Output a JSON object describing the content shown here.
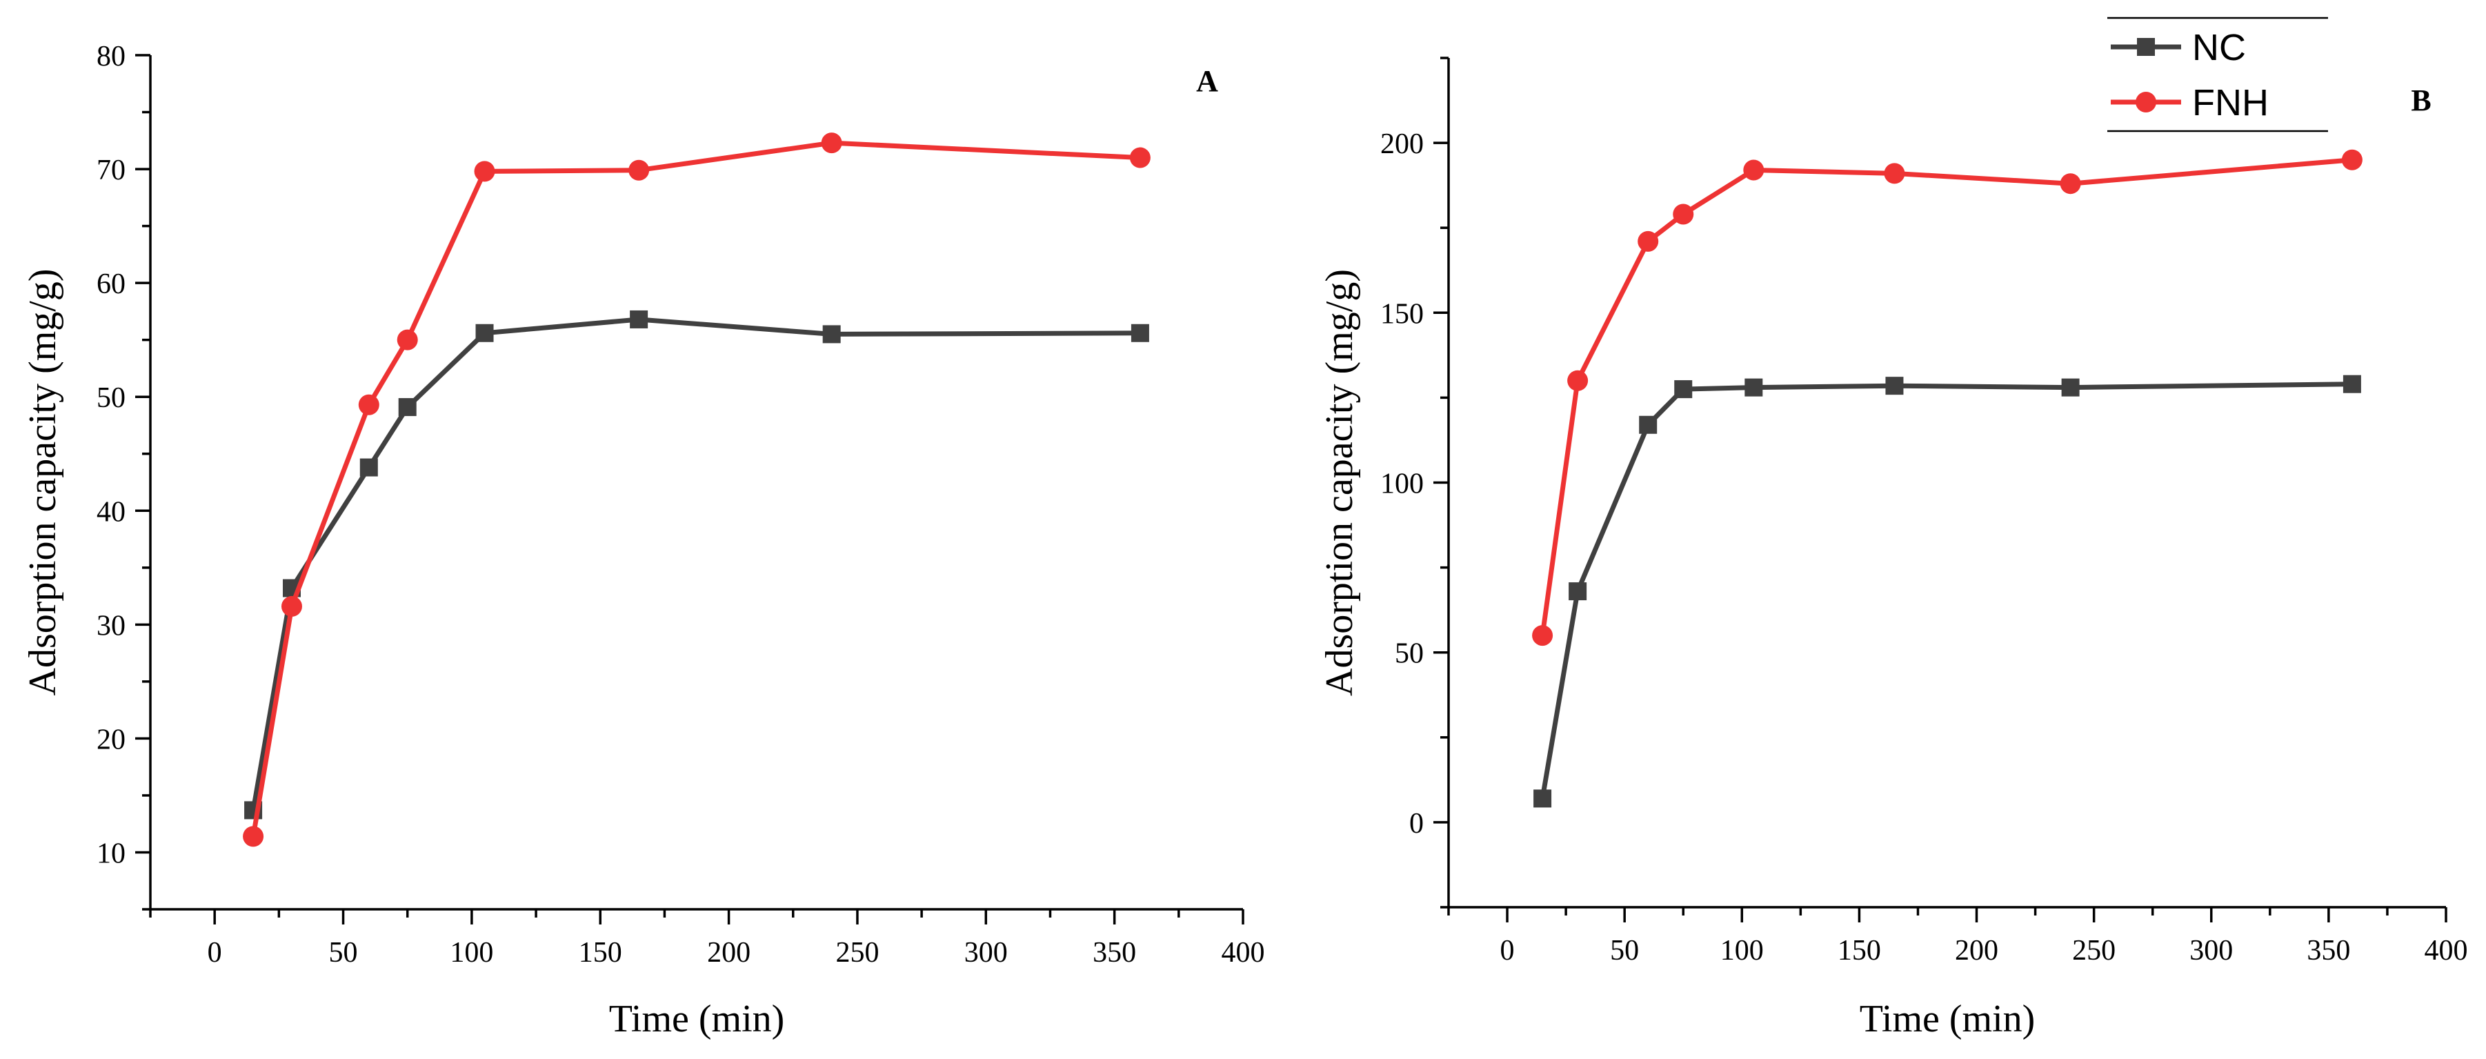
{
  "chart_data": [
    {
      "type": "line",
      "panel_label": "A",
      "title": "",
      "xlabel": "Time (min)",
      "ylabel": "Adsorption capacity (mg/g)",
      "xlim": [
        -25,
        400
      ],
      "ylim": [
        5,
        80
      ],
      "x_ticks": [
        0,
        50,
        100,
        150,
        200,
        250,
        300,
        350,
        400
      ],
      "y_ticks": [
        10,
        20,
        30,
        40,
        50,
        60,
        70,
        80
      ],
      "grid": false,
      "legend": null,
      "series": [
        {
          "name": "NC",
          "color": "#404040",
          "marker": "square",
          "x": [
            15,
            30,
            60,
            75,
            105,
            165,
            240,
            360
          ],
          "values": [
            13.7,
            33.2,
            43.8,
            49.1,
            55.6,
            56.8,
            55.5,
            55.6
          ]
        },
        {
          "name": "FNH",
          "color": "#ee3333",
          "marker": "circle",
          "x": [
            15,
            30,
            60,
            75,
            105,
            165,
            240,
            360
          ],
          "values": [
            11.4,
            31.6,
            49.3,
            55.0,
            69.8,
            69.9,
            72.3,
            71.0
          ]
        }
      ]
    },
    {
      "type": "line",
      "panel_label": "B",
      "title": "",
      "xlabel": "Time (min)",
      "ylabel": "Adsorption capacity (mg/g)",
      "xlim": [
        -25,
        400
      ],
      "ylim": [
        -25,
        225
      ],
      "x_ticks": [
        0,
        50,
        100,
        150,
        200,
        250,
        300,
        350,
        400
      ],
      "y_ticks": [
        0,
        50,
        100,
        150,
        200
      ],
      "grid": false,
      "legend": "top-right",
      "series": [
        {
          "name": "NC",
          "color": "#404040",
          "marker": "square",
          "x": [
            15,
            30,
            60,
            75,
            105,
            165,
            240,
            360
          ],
          "values": [
            7,
            68,
            117,
            127.5,
            128,
            128.5,
            128,
            129
          ]
        },
        {
          "name": "FNH",
          "color": "#ee3333",
          "marker": "circle",
          "x": [
            15,
            30,
            60,
            75,
            105,
            165,
            240,
            360
          ],
          "values": [
            55,
            130,
            171,
            179,
            192,
            191,
            188,
            195
          ]
        }
      ]
    }
  ]
}
